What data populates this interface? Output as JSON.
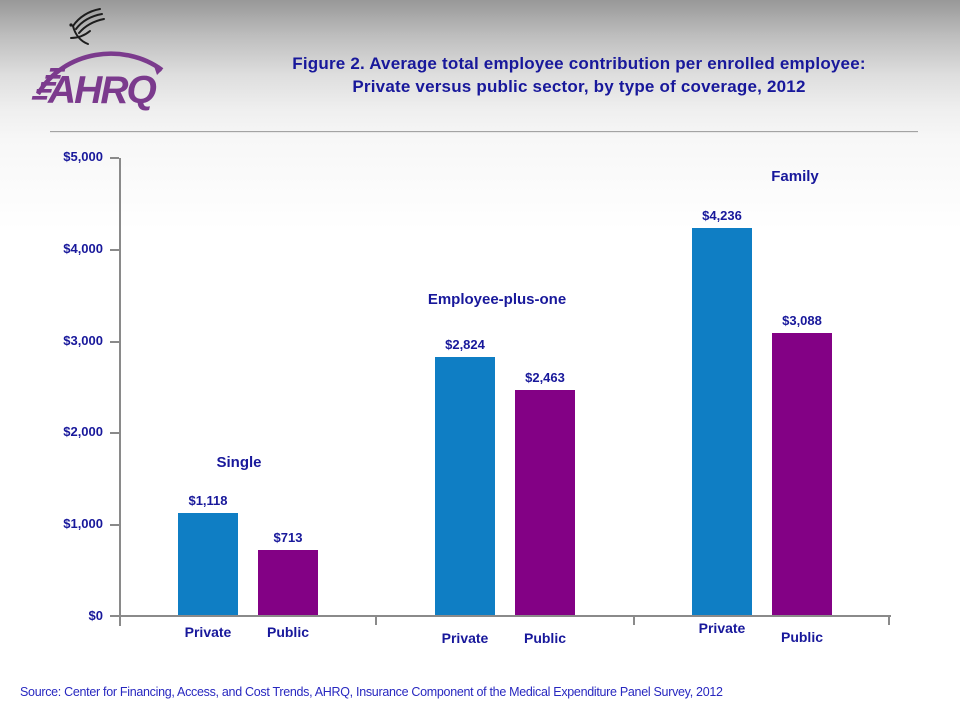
{
  "header": {
    "title_line1": "Figure 2. Average total employee contribution per enrolled employee:",
    "title_line2": "Private versus public sector, by type of coverage, 2012"
  },
  "logo": {
    "text": "AHRQ",
    "color": "#7B3A8D"
  },
  "footer": {
    "source": "Source: Center for Financing, Access, and Cost Trends, AHRQ, Insurance Component of the Medical Expenditure Panel Survey,  2012"
  },
  "colors": {
    "title_text": "#18189B",
    "axis_line": "#8a8a8a",
    "private_bar": "#0F7EC4",
    "public_bar": "#830185",
    "source_text": "#2828C0"
  },
  "chart_data": {
    "type": "bar",
    "title": "Figure 2. Average total employee contribution per enrolled employee: Private versus public sector, by type of coverage, 2012",
    "categories": [
      "Single",
      "Employee-plus-one",
      "Family"
    ],
    "series": [
      {
        "name": "Private",
        "color": "#0F7EC4",
        "values": [
          1118,
          2824,
          4236
        ],
        "value_labels": [
          "$1,118",
          "$2,824",
          "$4,236"
        ]
      },
      {
        "name": "Public",
        "color": "#830185",
        "values": [
          713,
          2463,
          3088
        ],
        "value_labels": [
          "$713",
          "$2,463",
          "$3,088"
        ]
      }
    ],
    "xlabel": "",
    "ylabel": "",
    "ylim": [
      0,
      5000
    ],
    "ytick_step": 1000,
    "ytick_labels": [
      "$0",
      "$1,000",
      "$2,000",
      "$3,000",
      "$4,000",
      "$5,000"
    ],
    "grid": false,
    "legend_position": "none"
  }
}
